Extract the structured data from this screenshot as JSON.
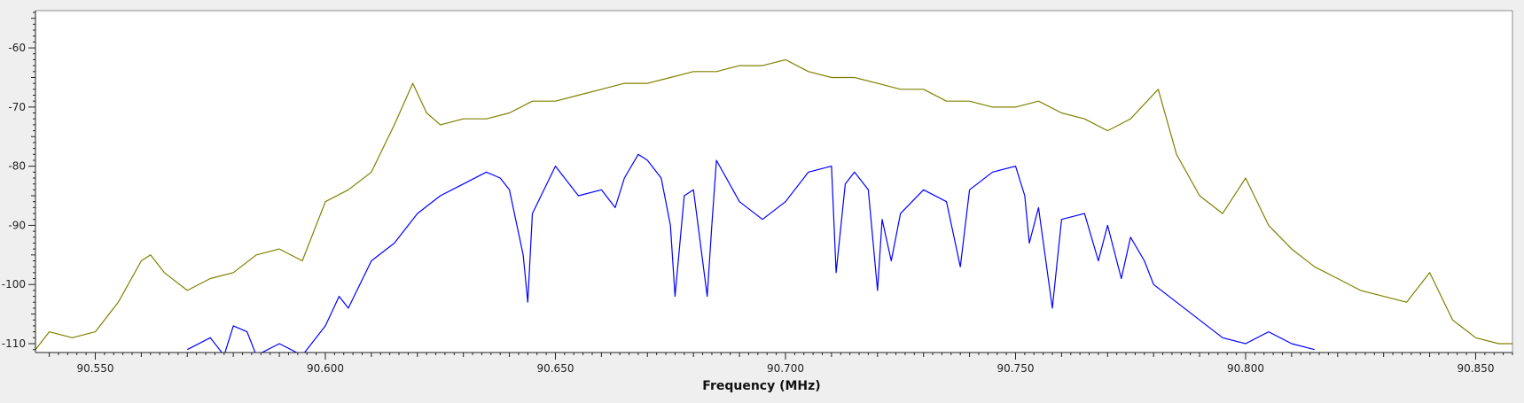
{
  "chart_data": {
    "type": "line",
    "title": "",
    "xlabel": "Frequency (MHz)",
    "ylabel": "",
    "xlim": [
      90.537,
      90.858
    ],
    "ylim": [
      -111.5,
      -53.7
    ],
    "x_ticks": [
      90.55,
      90.6,
      90.65,
      90.7,
      90.75,
      90.8,
      90.85
    ],
    "x_tick_labels": [
      "90.550",
      "90.600",
      "90.650",
      "90.700",
      "90.750",
      "90.800",
      "90.850"
    ],
    "y_ticks": [
      -110,
      -100,
      -90,
      -80,
      -70,
      -60
    ],
    "y_tick_labels": [
      "-110",
      "-100",
      "-90",
      "-80",
      "-70",
      "-60"
    ],
    "grid": false,
    "series": [
      {
        "color": "#808000",
        "x": [
          90.537,
          90.54,
          90.545,
          90.55,
          90.555,
          90.56,
          90.562,
          90.565,
          90.57,
          90.575,
          90.58,
          90.585,
          90.59,
          90.595,
          90.6,
          90.605,
          90.61,
          90.615,
          90.619,
          90.622,
          90.625,
          90.63,
          90.635,
          90.64,
          90.645,
          90.65,
          90.655,
          90.66,
          90.665,
          90.67,
          90.675,
          90.68,
          90.685,
          90.69,
          90.695,
          90.7,
          90.705,
          90.71,
          90.715,
          90.72,
          90.725,
          90.73,
          90.735,
          90.74,
          90.745,
          90.75,
          90.755,
          90.76,
          90.765,
          90.77,
          90.775,
          90.781,
          90.785,
          90.79,
          90.795,
          90.8,
          90.805,
          90.81,
          90.815,
          90.82,
          90.825,
          90.83,
          90.835,
          90.84,
          90.845,
          90.85,
          90.855,
          90.858
        ],
        "values": [
          -111,
          -108,
          -109,
          -108,
          -103,
          -96,
          -95,
          -98,
          -101,
          -99,
          -98,
          -95,
          -94,
          -96,
          -86,
          -84,
          -81,
          -73,
          -66,
          -71,
          -73,
          -72,
          -72,
          -71,
          -69,
          -69,
          -68,
          -67,
          -66,
          -66,
          -65,
          -64,
          -64,
          -63,
          -63,
          -62,
          -64,
          -65,
          -65,
          -66,
          -67,
          -67,
          -69,
          -69,
          -70,
          -70,
          -69,
          -71,
          -72,
          -74,
          -72,
          -67,
          -78,
          -85,
          -88,
          -82,
          -90,
          -94,
          -97,
          -99,
          -101,
          -102,
          -103,
          -98,
          -106,
          -109,
          -110,
          -110
        ]
      },
      {
        "color": "#0000ff",
        "x": [
          90.57,
          90.575,
          90.578,
          90.58,
          90.583,
          90.585,
          90.59,
          90.595,
          90.6,
          90.603,
          90.605,
          90.61,
          90.615,
          90.62,
          90.625,
          90.63,
          90.635,
          90.638,
          90.64,
          90.643,
          90.644,
          90.645,
          90.65,
          90.655,
          90.66,
          90.663,
          90.665,
          90.668,
          90.67,
          90.673,
          90.675,
          90.676,
          90.678,
          90.68,
          90.683,
          90.684,
          90.685,
          90.69,
          90.695,
          90.7,
          90.705,
          90.71,
          90.711,
          90.713,
          90.715,
          90.718,
          90.72,
          90.721,
          90.723,
          90.725,
          90.73,
          90.735,
          90.738,
          90.74,
          90.745,
          90.75,
          90.752,
          90.753,
          90.755,
          90.758,
          90.76,
          90.765,
          90.768,
          90.77,
          90.773,
          90.775,
          90.778,
          90.78,
          90.785,
          90.79,
          90.795,
          90.8,
          90.805,
          90.81,
          90.815
        ],
        "values": [
          -111,
          -109,
          -112,
          -107,
          -108,
          -112,
          -110,
          -112,
          -107,
          -102,
          -104,
          -96,
          -93,
          -88,
          -85,
          -83,
          -81,
          -82,
          -84,
          -95,
          -103,
          -88,
          -80,
          -85,
          -84,
          -87,
          -82,
          -78,
          -79,
          -82,
          -90,
          -102,
          -85,
          -84,
          -102,
          -90,
          -79,
          -86,
          -89,
          -86,
          -81,
          -80,
          -98,
          -83,
          -81,
          -84,
          -101,
          -89,
          -96,
          -88,
          -84,
          -86,
          -97,
          -84,
          -81,
          -80,
          -85,
          -93,
          -87,
          -104,
          -89,
          -88,
          -96,
          -90,
          -99,
          -92,
          -96,
          -100,
          -103,
          -106,
          -109,
          -110,
          -108,
          -110,
          -111
        ]
      }
    ]
  }
}
